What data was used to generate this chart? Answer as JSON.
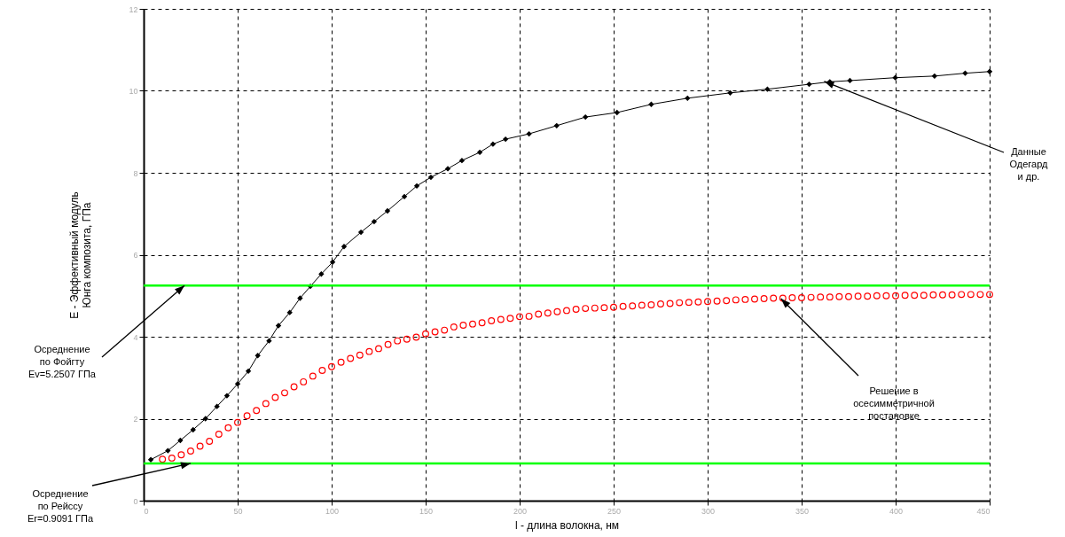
{
  "chart_data": {
    "type": "line",
    "xlabel": "l - длина волокна, нм",
    "ylabel": "E - Эффективный модуль\nЮнга композита, ГПа",
    "xlim": [
      0,
      450
    ],
    "ylim": [
      0,
      12
    ],
    "xticks": [
      0,
      50,
      100,
      150,
      200,
      250,
      300,
      350,
      400,
      450
    ],
    "yticks": [
      0,
      2,
      4,
      6,
      8,
      10,
      12
    ],
    "grid": true,
    "series": [
      {
        "type": "line",
        "marker": "diamond",
        "color": "#000000",
        "x": [
          3.8,
          12.9,
          19.5,
          26.3,
          32.9,
          39,
          44.3,
          50,
          55.7,
          60.7,
          66.7,
          71.7,
          77.7,
          83.2,
          88.7,
          94.5,
          100.5,
          106.6,
          115.6,
          122.6,
          129.7,
          138.7,
          145.3,
          152.8,
          161.8,
          169.3,
          178.8,
          185.8,
          192.5,
          205,
          219.7,
          235,
          251.8,
          270,
          289.3,
          312,
          331.8,
          354,
          365,
          375.7,
          399.8,
          420.7,
          437,
          450
        ],
        "values": [
          1.0,
          1.22,
          1.47,
          1.73,
          2.0,
          2.3,
          2.56,
          2.85,
          3.16,
          3.54,
          3.9,
          4.27,
          4.59,
          4.94,
          5.23,
          5.53,
          5.82,
          6.2,
          6.55,
          6.81,
          7.07,
          7.42,
          7.68,
          7.89,
          8.1,
          8.3,
          8.5,
          8.7,
          8.82,
          8.95,
          9.15,
          9.36,
          9.47,
          9.67,
          9.82,
          9.95,
          10.04,
          10.16,
          10.22,
          10.25,
          10.32,
          10.36,
          10.43,
          10.47
        ]
      },
      {
        "type": "scatter",
        "marker": "circle",
        "color": "#ff0000",
        "x": [
          10,
          15,
          20,
          25,
          30,
          35,
          40,
          45,
          50,
          55,
          60,
          65,
          70,
          75,
          80,
          85,
          90,
          95,
          100,
          105,
          110,
          115,
          120,
          125,
          130,
          135,
          140,
          145,
          150,
          155,
          160,
          165,
          170,
          175,
          180,
          185,
          190,
          195,
          200,
          205,
          210,
          215,
          220,
          225,
          230,
          235,
          240,
          245,
          250,
          255,
          260,
          265,
          270,
          275,
          280,
          285,
          290,
          295,
          300,
          305,
          310,
          315,
          320,
          325,
          330,
          335,
          340,
          345,
          350,
          355,
          360,
          365,
          370,
          375,
          380,
          385,
          390,
          395,
          400,
          405,
          410,
          415,
          420,
          425,
          430,
          435,
          440,
          445,
          450
        ],
        "values": [
          1.01,
          1.04,
          1.12,
          1.21,
          1.33,
          1.45,
          1.62,
          1.78,
          1.91,
          2.07,
          2.2,
          2.37,
          2.52,
          2.63,
          2.78,
          2.9,
          3.04,
          3.18,
          3.27,
          3.38,
          3.47,
          3.55,
          3.64,
          3.71,
          3.81,
          3.9,
          3.94,
          3.99,
          4.07,
          4.12,
          4.16,
          4.24,
          4.28,
          4.31,
          4.34,
          4.39,
          4.42,
          4.45,
          4.49,
          4.5,
          4.55,
          4.58,
          4.61,
          4.64,
          4.67,
          4.69,
          4.7,
          4.71,
          4.72,
          4.74,
          4.75,
          4.77,
          4.78,
          4.8,
          4.81,
          4.83,
          4.84,
          4.85,
          4.86,
          4.87,
          4.88,
          4.9,
          4.91,
          4.92,
          4.93,
          4.94,
          4.94,
          4.95,
          4.95,
          4.96,
          4.97,
          4.97,
          4.98,
          4.98,
          4.99,
          4.99,
          5.0,
          5.0,
          5.0,
          5.01,
          5.01,
          5.01,
          5.02,
          5.02,
          5.02,
          5.03,
          5.03,
          5.03,
          5.03
        ]
      }
    ],
    "ref_lines": [
      {
        "axis": "y",
        "value": 5.2507,
        "label": "Осреднение\nпо Фойгту\nEv=5.2507 ГПа",
        "color": "#00ff00"
      },
      {
        "axis": "y",
        "value": 0.9091,
        "label": "Осреднение\nпо Рейссу\nEr=0.9091 ГПа",
        "color": "#00ff00"
      }
    ],
    "annotations": [
      {
        "text": "Данные\nОдегард\nи др.",
        "x": 362,
        "y": 10.23
      },
      {
        "text": "Решение в\nосесимметричной\nпостановке",
        "x": 339,
        "y": 4.93
      }
    ]
  }
}
